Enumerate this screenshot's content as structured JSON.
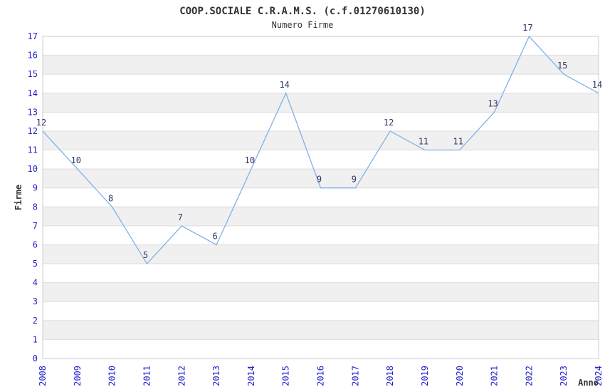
{
  "header": {
    "title": "COOP.SOCIALE C.R.A.M.S. (c.f.01270610130)",
    "subtitle": "Numero Firme"
  },
  "chart_data": {
    "type": "line",
    "title": "COOP.SOCIALE C.R.A.M.S. (c.f.01270610130)",
    "subtitle": "Numero Firme",
    "xlabel": "Anno",
    "ylabel": "Firme",
    "x": [
      "2008",
      "2009",
      "2010",
      "2011",
      "2012",
      "2013",
      "2014",
      "2015",
      "2016",
      "2017",
      "2018",
      "2019",
      "2020",
      "2021",
      "2022",
      "2023",
      "2024"
    ],
    "values": [
      12,
      10,
      8,
      5,
      7,
      6,
      10,
      14,
      9,
      9,
      12,
      11,
      11,
      13,
      17,
      15,
      14
    ],
    "point_labels": [
      "12",
      "10",
      "8",
      "5",
      "7",
      "6",
      "10",
      "14",
      "9",
      "9",
      "12",
      "11",
      "11",
      "13",
      "17",
      "15",
      "14"
    ],
    "ylim": [
      0,
      17
    ],
    "yticks": [
      0,
      1,
      2,
      3,
      4,
      5,
      6,
      7,
      8,
      9,
      10,
      11,
      12,
      13,
      14,
      15,
      16,
      17
    ],
    "grid": "horizontal-bands",
    "legend": "none",
    "colors": {
      "line": "#80b1e6",
      "tick_labels": "#2222cc",
      "point_labels": "#333366",
      "axis_titles": "#333333",
      "title_text": "#333333",
      "band_fill": "#f0f0f0",
      "grid_line": "#dcdcdc",
      "plot_border": "#cccccc",
      "background": "#ffffff"
    }
  }
}
